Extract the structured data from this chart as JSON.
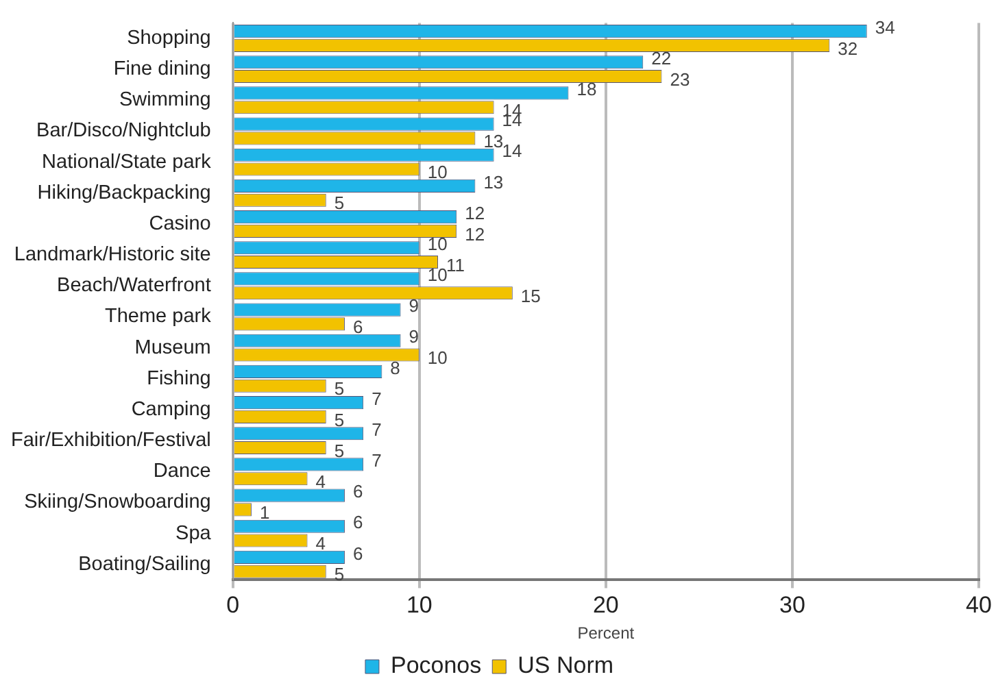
{
  "chart_data": {
    "type": "bar",
    "orientation": "horizontal",
    "xlabel": "Percent",
    "categories": [
      "Shopping",
      "Fine dining",
      "Swimming",
      "Bar/Disco/Nightclub",
      "National/State park",
      "Hiking/Backpacking",
      "Casino",
      "Landmark/Historic site",
      "Beach/Waterfront",
      "Theme park",
      "Museum",
      "Fishing",
      "Camping",
      "Fair/Exhibition/Festival",
      "Dance",
      "Skiing/Snowboarding",
      "Spa",
      "Boating/Sailing"
    ],
    "series": [
      {
        "name": "Poconos",
        "color": "#1fb5e8",
        "values": [
          34,
          22,
          18,
          14,
          14,
          13,
          12,
          10,
          10,
          9,
          9,
          8,
          7,
          7,
          7,
          6,
          6,
          6
        ]
      },
      {
        "name": "US Norm",
        "color": "#f2c200",
        "values": [
          32,
          23,
          14,
          13,
          10,
          5,
          12,
          11,
          15,
          6,
          10,
          5,
          5,
          5,
          4,
          1,
          4,
          5
        ]
      }
    ],
    "xlim": [
      0,
      40
    ],
    "xticks": [
      0,
      10,
      20,
      30,
      40
    ],
    "grid": "x",
    "legend": "bottom",
    "data_labels": true
  }
}
